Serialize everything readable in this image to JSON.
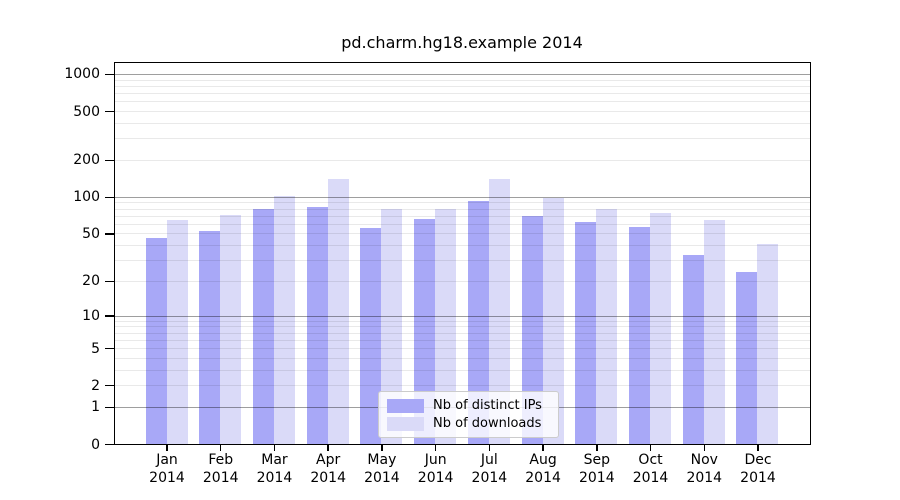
{
  "chart_data": {
    "type": "bar",
    "title": "pd.charm.hg18.example 2014",
    "categories": [
      "Jan",
      "Feb",
      "Mar",
      "Apr",
      "May",
      "Jun",
      "Jul",
      "Aug",
      "Sep",
      "Oct",
      "Nov",
      "Dec"
    ],
    "year_label": "2014",
    "series": [
      {
        "name": "Nb of distinct IPs",
        "color": "#a8a8f7",
        "values": [
          46,
          52,
          80,
          82,
          55,
          66,
          92,
          69,
          62,
          57,
          33,
          24
        ]
      },
      {
        "name": "Nb of downloads",
        "color": "#dadaf8",
        "values": [
          65,
          71,
          101,
          140,
          79,
          80,
          139,
          97,
          80,
          74,
          65,
          41
        ]
      }
    ],
    "y_scale": "log1p",
    "y_ticks": [
      0,
      1,
      2,
      5,
      10,
      20,
      50,
      100,
      200,
      500,
      1000
    ],
    "y_tick_labels": [
      "0",
      "1",
      "2",
      "5",
      "10",
      "20",
      "50",
      "100",
      "200",
      "500",
      "1000"
    ],
    "ylim": [
      0,
      1228
    ],
    "grid": "on",
    "legend_position": "lower center"
  }
}
